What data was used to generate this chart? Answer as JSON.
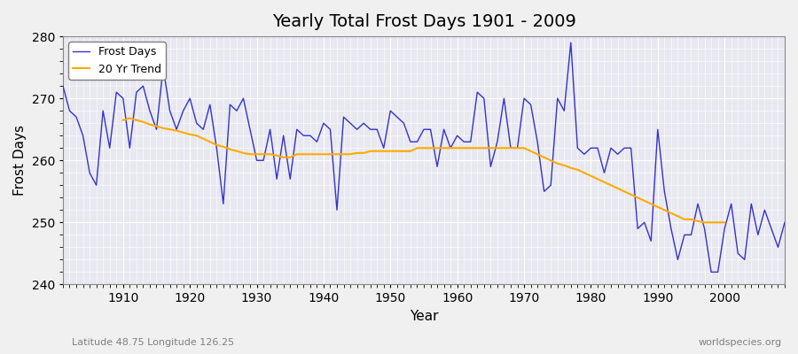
{
  "title": "Yearly Total Frost Days 1901 - 2009",
  "xlabel": "Year",
  "ylabel": "Frost Days",
  "subtitle_left": "Latitude 48.75 Longitude 126.25",
  "subtitle_right": "worldspecies.org",
  "ylim": [
    240,
    280
  ],
  "xlim": [
    1901,
    2009
  ],
  "background_color": "#e8e8f0",
  "line_color": "#3333cc",
  "trend_color": "#ffaa00",
  "years": [
    1901,
    1902,
    1903,
    1904,
    1905,
    1906,
    1907,
    1908,
    1909,
    1910,
    1911,
    1912,
    1913,
    1914,
    1915,
    1916,
    1917,
    1918,
    1919,
    1920,
    1921,
    1922,
    1923,
    1924,
    1925,
    1926,
    1927,
    1928,
    1929,
    1930,
    1931,
    1932,
    1933,
    1934,
    1935,
    1936,
    1937,
    1938,
    1939,
    1940,
    1941,
    1942,
    1943,
    1944,
    1945,
    1946,
    1947,
    1948,
    1949,
    1950,
    1951,
    1952,
    1953,
    1954,
    1955,
    1956,
    1957,
    1958,
    1959,
    1960,
    1961,
    1962,
    1963,
    1964,
    1965,
    1966,
    1967,
    1968,
    1969,
    1970,
    1971,
    1972,
    1973,
    1974,
    1975,
    1976,
    1977,
    1978,
    1979,
    1980,
    1981,
    1982,
    1983,
    1984,
    1985,
    1986,
    1987,
    1988,
    1989,
    1990,
    1991,
    1992,
    1993,
    1994,
    1995,
    1996,
    1997,
    1998,
    1999,
    2000,
    2001,
    2002,
    2003,
    2004,
    2005,
    2006,
    2007,
    2008,
    2009
  ],
  "frost_days": [
    272,
    268,
    267,
    264,
    258,
    256,
    268,
    262,
    271,
    270,
    262,
    271,
    272,
    268,
    265,
    275,
    268,
    265,
    268,
    270,
    266,
    265,
    269,
    262,
    253,
    269,
    268,
    270,
    265,
    260,
    260,
    265,
    257,
    264,
    257,
    265,
    264,
    264,
    263,
    266,
    265,
    252,
    267,
    266,
    265,
    266,
    265,
    265,
    262,
    268,
    267,
    266,
    263,
    263,
    265,
    265,
    259,
    265,
    262,
    264,
    263,
    263,
    271,
    270,
    259,
    263,
    270,
    262,
    262,
    270,
    269,
    263,
    255,
    256,
    270,
    268,
    279,
    262,
    261,
    262,
    262,
    258,
    262,
    261,
    262,
    262,
    249,
    250,
    247,
    265,
    255,
    249,
    244,
    248,
    248,
    253,
    249,
    242,
    242,
    249,
    253,
    245,
    244,
    253,
    248,
    252,
    249,
    246,
    250
  ],
  "trend_years": [
    1910,
    1911,
    1912,
    1913,
    1914,
    1915,
    1916,
    1917,
    1918,
    1919,
    1920,
    1921,
    1922,
    1923,
    1924,
    1925,
    1926,
    1927,
    1928,
    1929,
    1930,
    1931,
    1932,
    1933,
    1934,
    1935,
    1936,
    1937,
    1938,
    1939,
    1940,
    1941,
    1942,
    1943,
    1944,
    1945,
    1946,
    1947,
    1948,
    1949,
    1950,
    1951,
    1952,
    1953,
    1954,
    1955,
    1956,
    1957,
    1958,
    1959,
    1960,
    1961,
    1962,
    1963,
    1964,
    1965,
    1966,
    1967,
    1968,
    1969,
    1970,
    1971,
    1972,
    1973,
    1974,
    1975,
    1976,
    1977,
    1978,
    1979,
    1980,
    1981,
    1982,
    1983,
    1984,
    1985,
    1986,
    1987,
    1988,
    1989,
    1990,
    1991,
    1992,
    1993,
    1994,
    1995,
    1996,
    1997,
    1998,
    1999,
    2000
  ],
  "trend_values": [
    266.5,
    266.8,
    266.5,
    266.2,
    265.8,
    265.5,
    265.2,
    265.0,
    264.8,
    264.5,
    264.2,
    264.0,
    263.5,
    263.0,
    262.5,
    262.2,
    261.8,
    261.5,
    261.2,
    261.0,
    261.0,
    261.0,
    261.0,
    260.8,
    260.5,
    260.5,
    261.0,
    261.0,
    261.0,
    261.0,
    261.0,
    261.0,
    261.0,
    261.0,
    261.0,
    261.2,
    261.2,
    261.5,
    261.5,
    261.5,
    261.5,
    261.5,
    261.5,
    261.5,
    262.0,
    262.0,
    262.0,
    262.0,
    262.0,
    262.0,
    262.0,
    262.0,
    262.0,
    262.0,
    262.0,
    262.0,
    262.0,
    262.0,
    262.0,
    262.0,
    262.0,
    261.5,
    261.0,
    260.5,
    260.0,
    259.5,
    259.2,
    258.8,
    258.5,
    258.0,
    257.5,
    257.0,
    256.5,
    256.0,
    255.5,
    255.0,
    254.5,
    254.0,
    253.5,
    253.0,
    252.5,
    252.0,
    251.5,
    251.0,
    250.5,
    250.5,
    250.2,
    250.0,
    250.0,
    250.0,
    250.0
  ]
}
